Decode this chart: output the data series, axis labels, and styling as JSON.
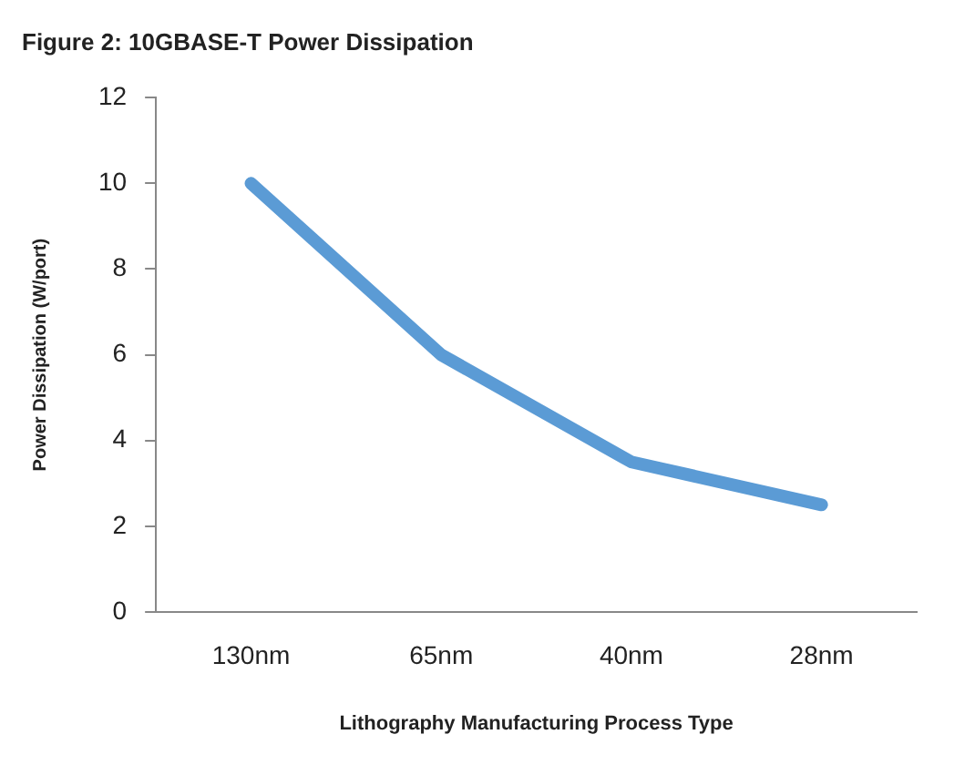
{
  "chart_data": {
    "type": "line",
    "title": "Figure 2: 10GBASE-T Power Dissipation",
    "xlabel": "Lithography Manufacturing Process Type",
    "ylabel": "Power Dissipation (W/port)",
    "categories": [
      "130nm",
      "65nm",
      "40nm",
      "28nm"
    ],
    "series": [
      {
        "color": "#5b9bd5",
        "values": [
          10,
          6,
          3.5,
          2.5
        ]
      }
    ],
    "ylim": [
      0,
      12
    ],
    "yticks": [
      0,
      2,
      4,
      6,
      8,
      10,
      12
    ],
    "grid": false,
    "legend": false,
    "marker": "none",
    "line_style": "solid"
  }
}
